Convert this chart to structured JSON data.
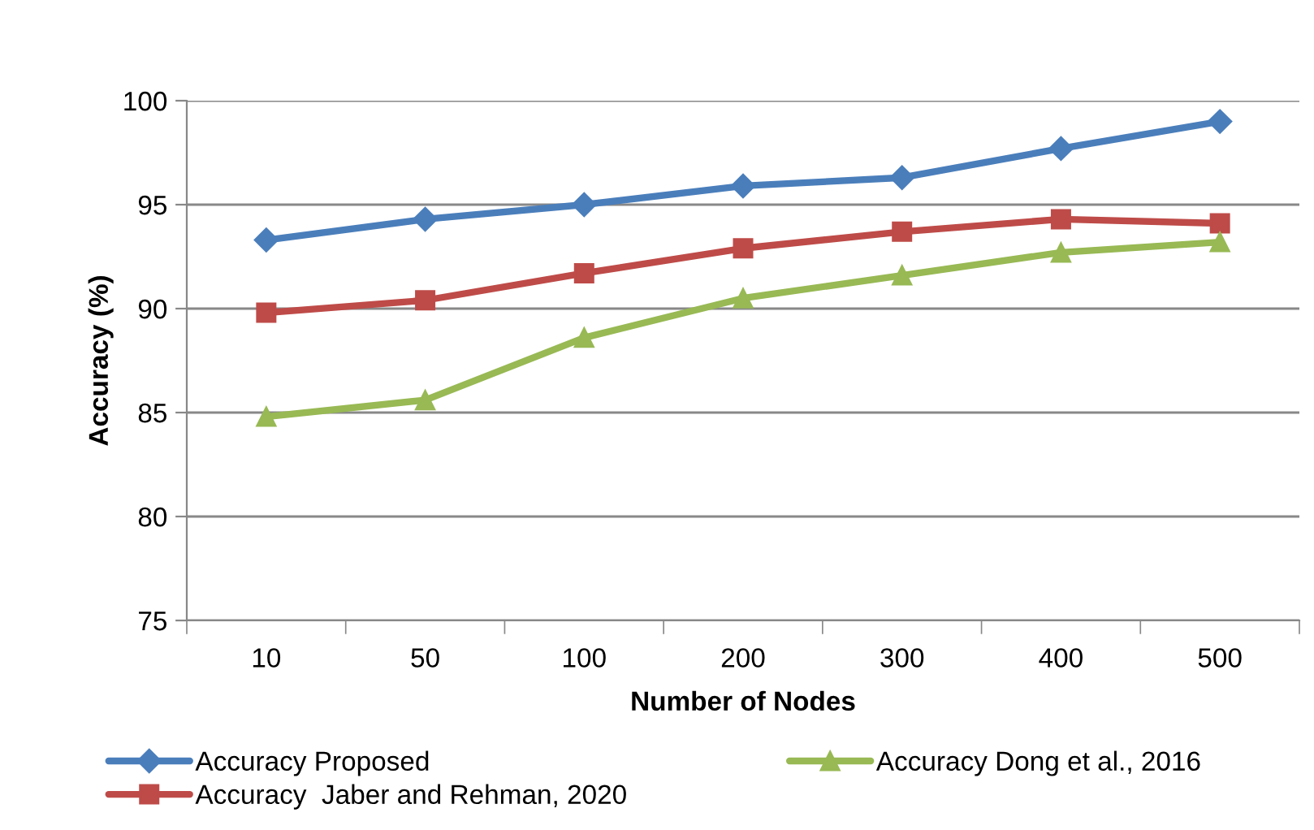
{
  "chart_data": {
    "type": "line",
    "xlabel": "Number of Nodes",
    "ylabel": "Accuracy (%)",
    "categories": [
      "10",
      "50",
      "100",
      "200",
      "300",
      "400",
      "500"
    ],
    "series": [
      {
        "name": "Accuracy Proposed",
        "color": "#4a7ebb",
        "marker": "diamond",
        "values": [
          93.3,
          94.3,
          95.0,
          95.9,
          96.3,
          97.7,
          99.0
        ]
      },
      {
        "name": "Accuracy  Jaber and Rehman, 2020",
        "color": "#be4b48",
        "marker": "square",
        "values": [
          89.8,
          90.4,
          91.7,
          92.9,
          93.7,
          94.3,
          94.1
        ]
      },
      {
        "name": "Accuracy Dong et al., 2016",
        "color": "#98b954",
        "marker": "triangle",
        "values": [
          84.8,
          85.6,
          88.6,
          90.5,
          91.6,
          92.7,
          93.2
        ]
      }
    ],
    "ylim": [
      75,
      100
    ],
    "yticks": [
      75,
      80,
      85,
      90,
      95,
      100
    ],
    "grid": "y",
    "legend": "bottom",
    "line_style": "solid"
  }
}
